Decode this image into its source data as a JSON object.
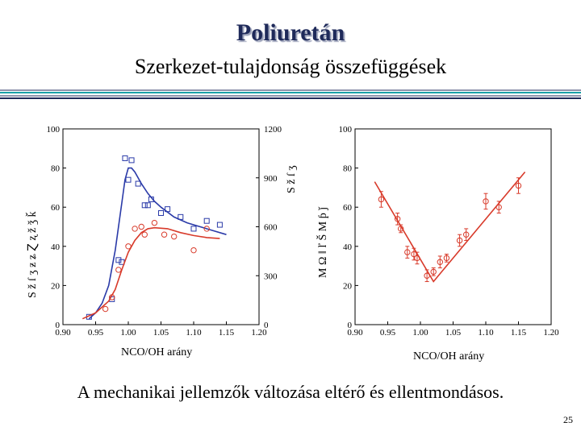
{
  "slide": {
    "title": "Poliuretán",
    "subtitle": "Szerkezet-tulajdonság összefüggések",
    "caption": "A mechanikai jellemzők változása eltérő és ellentmondásos.",
    "page_number": "25"
  },
  "colors": {
    "title": "#1f2a5a",
    "blue": "#2a3aa8",
    "red": "#d83a2a",
    "rule_teal": "#1aa0a8",
    "rule_navy": "#1f2a5a"
  },
  "chart_data": [
    {
      "type": "scatter",
      "xlabel": "NCO/OH arány",
      "xlim": [
        0.9,
        1.2
      ],
      "x_ticks": [
        "0.90",
        "0.95",
        "1.00",
        "1.05",
        "1.10",
        "1.15",
        "1.20"
      ],
      "ylim_left": [
        0,
        100
      ],
      "y_ticks_left": [
        "0",
        "20",
        "40",
        "60",
        "80",
        "100"
      ],
      "ylim_right": [
        0,
        1200
      ],
      "y_ticks_right": [
        "0",
        "300",
        "600",
        "900",
        "1200"
      ],
      "left_axis_label_glyphs": "S ž ſ ʒ ƶ ʑ Ɀ ʐ ž ǯ ǩ",
      "right_axis_label_glyphs": "S ž ſ ʒ",
      "series": [
        {
          "name": "blue-squares",
          "color": "#2a3aa8",
          "points": [
            [
              0.94,
              4
            ],
            [
              0.975,
              13
            ],
            [
              0.985,
              33
            ],
            [
              0.99,
              32
            ],
            [
              0.995,
              85
            ],
            [
              1.0,
              74
            ],
            [
              1.005,
              84
            ],
            [
              1.015,
              72
            ],
            [
              1.025,
              61
            ],
            [
              1.03,
              61
            ],
            [
              1.035,
              64
            ],
            [
              1.05,
              57
            ],
            [
              1.06,
              59
            ],
            [
              1.08,
              55
            ],
            [
              1.1,
              49
            ],
            [
              1.12,
              53
            ],
            [
              1.14,
              51
            ]
          ],
          "curve": [
            [
              0.94,
              3
            ],
            [
              0.95,
              6
            ],
            [
              0.96,
              11
            ],
            [
              0.97,
              20
            ],
            [
              0.98,
              38
            ],
            [
              0.99,
              62
            ],
            [
              0.995,
              74
            ],
            [
              1.0,
              80
            ],
            [
              1.005,
              80
            ],
            [
              1.01,
              78
            ],
            [
              1.02,
              72
            ],
            [
              1.03,
              67
            ],
            [
              1.04,
              63
            ],
            [
              1.05,
              60
            ],
            [
              1.07,
              55
            ],
            [
              1.09,
              52
            ],
            [
              1.11,
              50
            ],
            [
              1.13,
              48
            ],
            [
              1.15,
              46
            ]
          ]
        },
        {
          "name": "red-circles",
          "color": "#d83a2a",
          "points": [
            [
              0.965,
              8
            ],
            [
              0.975,
              14
            ],
            [
              0.985,
              28
            ],
            [
              1.0,
              40
            ],
            [
              1.01,
              49
            ],
            [
              1.02,
              50
            ],
            [
              1.025,
              46
            ],
            [
              1.04,
              52
            ],
            [
              1.055,
              46
            ],
            [
              1.07,
              45
            ],
            [
              1.1,
              38
            ],
            [
              1.12,
              49
            ]
          ],
          "curve": [
            [
              0.93,
              3
            ],
            [
              0.95,
              6
            ],
            [
              0.97,
              12
            ],
            [
              0.98,
              18
            ],
            [
              0.99,
              28
            ],
            [
              1.0,
              37
            ],
            [
              1.01,
              43
            ],
            [
              1.02,
              47
            ],
            [
              1.03,
              49
            ],
            [
              1.04,
              49.5
            ],
            [
              1.06,
              49
            ],
            [
              1.08,
              47
            ],
            [
              1.1,
              45.5
            ],
            [
              1.12,
              44.5
            ],
            [
              1.14,
              44
            ]
          ]
        }
      ]
    },
    {
      "type": "scatter",
      "xlabel": "NCO/OH arány",
      "xlim": [
        0.9,
        1.2
      ],
      "x_ticks": [
        "0.90",
        "0.95",
        "1.00",
        "1.05",
        "1.10",
        "1.15",
        "1.20"
      ],
      "ylim_left": [
        0,
        100
      ],
      "y_ticks_left": [
        "0",
        "20",
        "40",
        "60",
        "80",
        "100"
      ],
      "left_axis_label_glyphs": "M Ω ǁ ľ Š M ƥ ǰ",
      "series": [
        {
          "name": "red-circles-errorbars",
          "color": "#d83a2a",
          "points": [
            [
              0.94,
              64
            ],
            [
              0.965,
              54
            ],
            [
              0.97,
              49
            ],
            [
              0.98,
              37
            ],
            [
              0.99,
              36
            ],
            [
              0.995,
              34
            ],
            [
              1.01,
              25
            ],
            [
              1.02,
              27
            ],
            [
              1.03,
              32
            ],
            [
              1.04,
              34
            ],
            [
              1.06,
              43
            ],
            [
              1.07,
              46
            ],
            [
              1.1,
              63
            ],
            [
              1.12,
              60
            ],
            [
              1.15,
              71
            ]
          ],
          "errors": [
            4,
            3,
            2,
            3,
            3,
            3,
            3,
            2,
            3,
            2,
            3,
            3,
            4,
            3,
            4
          ],
          "line": [
            [
              0.93,
              73
            ],
            [
              1.02,
              22
            ],
            [
              1.16,
              78
            ]
          ]
        }
      ]
    }
  ]
}
